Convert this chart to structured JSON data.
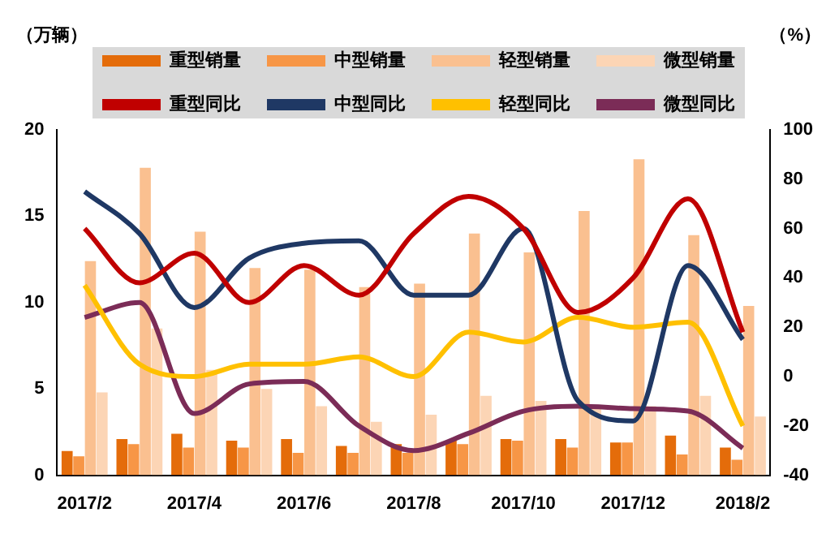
{
  "chart_data": {
    "type": "bar",
    "ylabel": "（万辆）",
    "y2label": "（%）",
    "categories": [
      "2017/2",
      null,
      "2017/4",
      null,
      "2017/6",
      null,
      "2017/8",
      null,
      "2017/10",
      null,
      "2017/12",
      null,
      "2018/2"
    ],
    "series": [
      {
        "name": "重型销量",
        "color": "#e46c0a",
        "values": [
          1.4,
          2.1,
          2.4,
          2.0,
          2.1,
          1.7,
          1.8,
          2.0,
          2.1,
          2.1,
          1.9,
          2.3,
          1.6
        ]
      },
      {
        "name": "中型销量",
        "color": "#f79646",
        "values": [
          1.1,
          1.8,
          1.6,
          1.6,
          1.3,
          1.3,
          1.3,
          1.8,
          2.0,
          1.6,
          1.9,
          1.2,
          0.9
        ]
      },
      {
        "name": "轻型销量",
        "color": "#fac090",
        "values": [
          12.4,
          17.8,
          14.1,
          12.0,
          11.9,
          10.9,
          11.1,
          14.0,
          12.9,
          15.3,
          18.3,
          13.9,
          9.8
        ]
      },
      {
        "name": "微型销量",
        "color": "#fcd5b5",
        "values": [
          4.8,
          8.5,
          6.1,
          5.0,
          4.0,
          3.1,
          3.5,
          4.6,
          4.3,
          4.0,
          4.0,
          4.6,
          3.4
        ]
      },
      {
        "name": "重型同比",
        "type": "line",
        "axis": "y2",
        "color": "#c00000",
        "values": [
          60,
          38,
          50,
          30,
          45,
          33,
          58,
          73,
          60,
          26,
          40,
          72,
          18
        ]
      },
      {
        "name": "中型同比",
        "type": "line",
        "axis": "y2",
        "color": "#1f3864",
        "values": [
          75,
          58,
          28,
          48,
          54,
          55,
          33,
          33,
          60,
          -10,
          -18,
          45,
          15
        ]
      },
      {
        "name": "轻型同比",
        "type": "line",
        "axis": "y2",
        "color": "#ffc000",
        "values": [
          37,
          5,
          0,
          5,
          5,
          8,
          0,
          18,
          14,
          24,
          20,
          22,
          -20
        ]
      },
      {
        "name": "微型同比",
        "type": "line",
        "axis": "y2",
        "color": "#7b2c57",
        "values": [
          24,
          30,
          -15,
          -3,
          -2,
          -20,
          -30,
          -23,
          -14,
          -12,
          -13,
          -14,
          -29
        ]
      }
    ],
    "ylim": [
      0,
      20
    ],
    "yticks": [
      0,
      5,
      10,
      15,
      20
    ],
    "y2lim": [
      -40,
      100
    ],
    "y2ticks": [
      -40,
      -20,
      0,
      20,
      40,
      60,
      80,
      100
    ],
    "grid": false,
    "legend": "top",
    "marker": "none",
    "line_style": "solid"
  }
}
